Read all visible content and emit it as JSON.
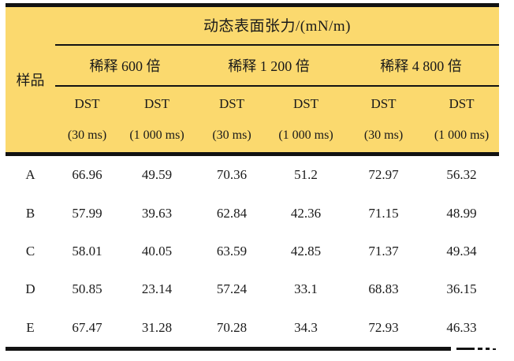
{
  "table": {
    "title": "动态表面张力/(mN/m)",
    "sample_header": "样品",
    "dilution_headers": [
      "稀释 600 倍",
      "稀释 1 200 倍",
      "稀释 4 800 倍"
    ],
    "dst_subheaders": [
      {
        "label": "DST",
        "time": "(30 ms)"
      },
      {
        "label": "DST",
        "time": "(1 000 ms)"
      },
      {
        "label": "DST",
        "time": "(30 ms)"
      },
      {
        "label": "DST",
        "time": "(1 000 ms)"
      },
      {
        "label": "DST",
        "time": "(30 ms)"
      },
      {
        "label": "DST",
        "time": "(1 000 ms)"
      }
    ],
    "rows": [
      {
        "sample": "A",
        "values": [
          "66.96",
          "49.59",
          "70.36",
          "51.2",
          "72.97",
          "56.32"
        ]
      },
      {
        "sample": "B",
        "values": [
          "57.99",
          "39.63",
          "62.84",
          "42.36",
          "71.15",
          "48.99"
        ]
      },
      {
        "sample": "C",
        "values": [
          "58.01",
          "40.05",
          "63.59",
          "42.85",
          "71.37",
          "49.34"
        ]
      },
      {
        "sample": "D",
        "values": [
          "50.85",
          "23.14",
          "57.24",
          "33.1",
          "68.83",
          "36.15"
        ]
      },
      {
        "sample": "E",
        "values": [
          "67.47",
          "31.28",
          "70.28",
          "34.3",
          "72.93",
          "46.33"
        ]
      }
    ],
    "colors": {
      "header_bg": "#FBD96E",
      "rule": "#121212",
      "text": "#1a1a1a"
    }
  }
}
